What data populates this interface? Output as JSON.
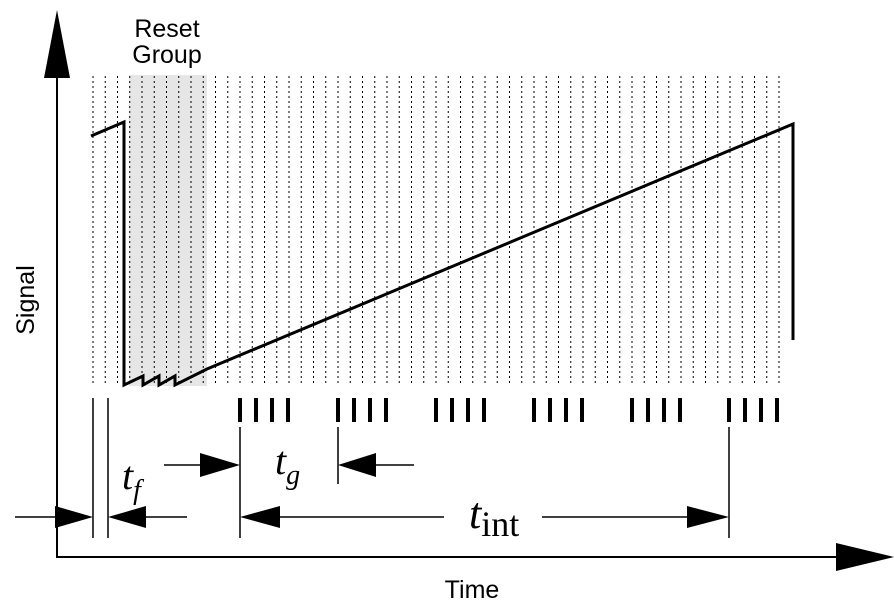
{
  "labels": {
    "reset_line1": "Reset",
    "reset_line2": "Group",
    "y_axis": "Signal",
    "x_axis": "Time",
    "tf_main": "t",
    "tf_sub": "f",
    "tg_main": "t",
    "tg_sub": "g",
    "tint_main": "t",
    "tint_sub": "int"
  },
  "colors": {
    "line": "#000000",
    "reset_shade": "#e6e6e6",
    "background": "#ffffff"
  },
  "structure": {
    "frame_count": 57,
    "frames_per_group": 4,
    "read_groups": 6
  }
}
